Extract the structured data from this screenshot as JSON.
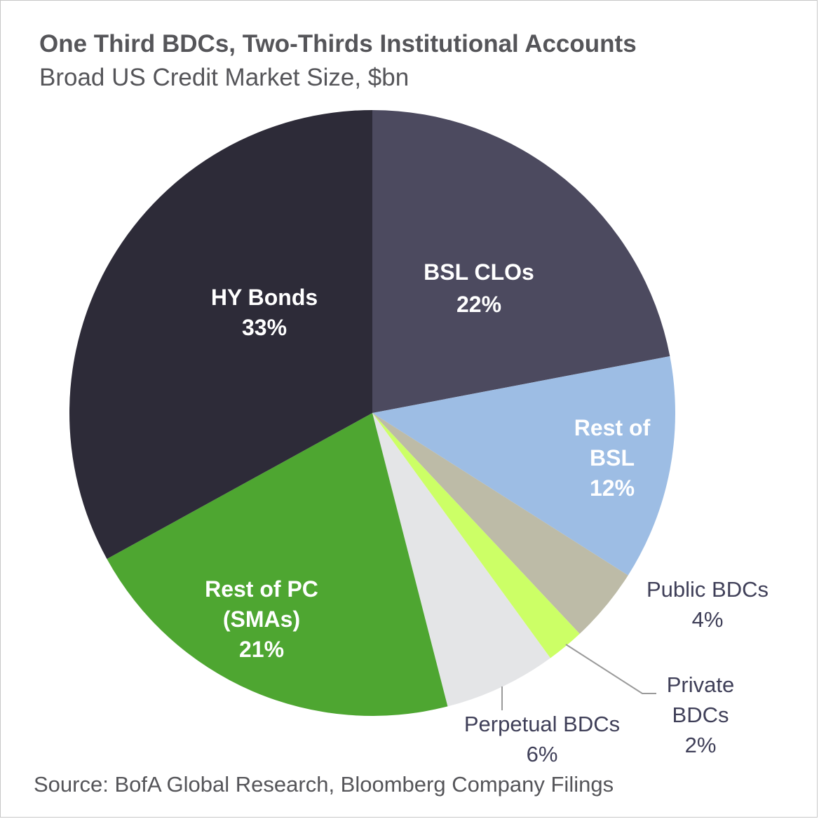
{
  "title": "One Third BDCs, Two-Thirds Institutional Accounts",
  "subtitle": "Broad US Credit Market Size, $bn",
  "source": "Source: BofA Global Research, Bloomberg Company Filings",
  "colors": {
    "bsl_clos": "#4c4a5f",
    "rest_of_bsl": "#9dbde4",
    "public_bdcs": "#bdbba7",
    "private_bdcs": "#ccff66",
    "perpetual_bdcs": "#e4e5e7",
    "rest_of_pc": "#4ea631",
    "hy_bonds": "#2d2b38"
  },
  "chart_data": {
    "type": "pie",
    "title": "One Third BDCs, Two-Thirds Institutional Accounts",
    "subtitle": "Broad US Credit Market Size, $bn",
    "slices": [
      {
        "label_lines": [
          "BSL CLOs"
        ],
        "value": 22,
        "value_label": "22%",
        "color": "#4c4a5f",
        "label_style": "inside"
      },
      {
        "label_lines": [
          "Rest of",
          "BSL"
        ],
        "value": 12,
        "value_label": "12%",
        "color": "#9dbde4",
        "label_style": "inside"
      },
      {
        "label_lines": [
          "Public BDCs"
        ],
        "value": 4,
        "value_label": "4%",
        "color": "#bdbba7",
        "label_style": "outside"
      },
      {
        "label_lines": [
          "Private",
          "BDCs"
        ],
        "value": 2,
        "value_label": "2%",
        "color": "#ccff66",
        "label_style": "outside"
      },
      {
        "label_lines": [
          "Perpetual BDCs"
        ],
        "value": 6,
        "value_label": "6%",
        "color": "#e4e5e7",
        "label_style": "outside"
      },
      {
        "label_lines": [
          "Rest of PC",
          "(SMAs)"
        ],
        "value": 21,
        "value_label": "21%",
        "color": "#4ea631",
        "label_style": "inside"
      },
      {
        "label_lines": [
          "HY Bonds"
        ],
        "value": 33,
        "value_label": "33%",
        "color": "#2d2b38",
        "label_style": "inside"
      }
    ],
    "start": "12 o'clock",
    "direction": "clockwise"
  }
}
